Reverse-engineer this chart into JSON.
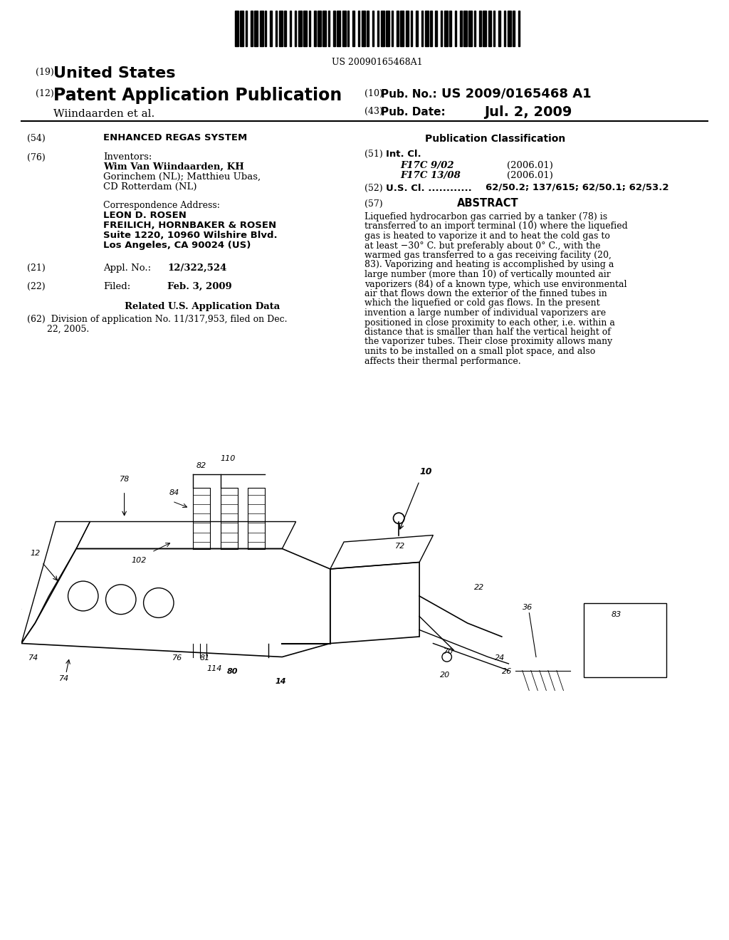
{
  "bg_color": "#ffffff",
  "barcode_text": "US 20090165468A1",
  "patent_number_label": "(19)",
  "patent_number_text": "United States",
  "pub_label": "(12)",
  "pub_text": "Patent Application Publication",
  "pub_num_label": "(10)",
  "pub_num_text": "Pub. No.:",
  "pub_num_value": "US 2009/0165468 A1",
  "inventor_line": "Wiindaarden et al.",
  "pub_date_label": "(43)",
  "pub_date_text": "Pub. Date:",
  "pub_date_value": "Jul. 2, 2009",
  "title_label": "(54)",
  "title_text": "ENHANCED REGAS SYSTEM",
  "pub_class_header": "Publication Classification",
  "int_cl_label": "(51)",
  "int_cl_text": "Int. Cl.",
  "int_cl_1": "F17C 9/02",
  "int_cl_1_date": "(2006.01)",
  "int_cl_2": "F17C 13/08",
  "int_cl_2_date": "(2006.01)",
  "us_cl_label": "(52)",
  "us_cl_text": "U.S. Cl. ............",
  "us_cl_value": "62/50.2; 137/615; 62/50.1; 62/53.2",
  "abstract_label": "(57)",
  "abstract_header": "ABSTRACT",
  "abstract_text": "Liquefied hydrocarbon gas carried by a tanker (78) is transferred to an import terminal (10) where the liquefied gas is heated to vaporize it and to heat the cold gas to at least −30° C. but preferably about 0° C., with the warmed gas transferred to a gas receiving facility (20, 83). Vaporizing and heating is accomplished by using a large number (more than 10) of vertically mounted air vaporizers (84) of a known type, which use environmental air that flows down the exterior of the finned tubes in which the liquefied or cold gas flows. In the present invention a large number of individual vaporizers are positioned in close proximity to each other, i.e. within a distance that is smaller than half the vertical height of the vaporizer tubes. Their close proximity allows many units to be installed on a small plot space, and also affects their thermal performance.",
  "inventors_label": "(76)",
  "inventors_title": "Inventors:",
  "inventors_text": "Wim Van Wiindaarden, KH\nGorinchem (NL); Matthieu Ubas,\nCD Rotterdam (NL)",
  "corr_addr_title": "Correspondence Address:",
  "corr_line1": "LEON D. ROSEN",
  "corr_line2": "FREILICH, HORNBAKER & ROSEN",
  "corr_line3": "Suite 1220, 10960 Wilshire Blvd.",
  "corr_line4": "Los Angeles, CA 90024 (US)",
  "appl_label": "(21)",
  "appl_title": "Appl. No.:",
  "appl_value": "12/322,524",
  "filed_label": "(22)",
  "filed_title": "Filed:",
  "filed_value": "Feb. 3, 2009",
  "related_header": "Related U.S. Application Data",
  "related_text": "(62)  Division of application No. 11/317,953, filed on Dec.\n       22, 2005."
}
